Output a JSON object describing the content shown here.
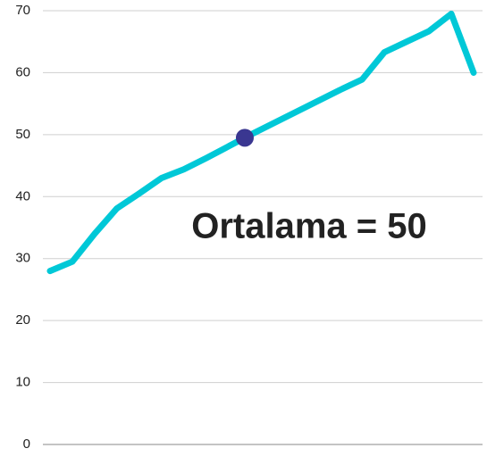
{
  "chart_data": {
    "type": "line",
    "categories": [
      null,
      null,
      null,
      null,
      null,
      null,
      null,
      null,
      null,
      null,
      null,
      null,
      null,
      null,
      null,
      null,
      null,
      null,
      null,
      null
    ],
    "series": [
      {
        "color": "#00c8d7",
        "values": [
          28,
          29.5,
          34,
          38.1,
          40.5,
          43,
          44.4,
          46.2,
          48.1,
          50,
          51.8,
          53.6,
          55.4,
          57.2,
          58.9,
          63.3,
          65,
          66.7,
          69.5,
          60
        ]
      }
    ],
    "marker": {
      "value": 49.5,
      "color": "#3a3791"
    },
    "annotation": {
      "text": "Ortalama = 50",
      "color": "#f57c00"
    },
    "ylim": [
      0,
      70
    ],
    "yticks": [
      0,
      10,
      20,
      30,
      40,
      50,
      60,
      70
    ],
    "grid": true
  }
}
